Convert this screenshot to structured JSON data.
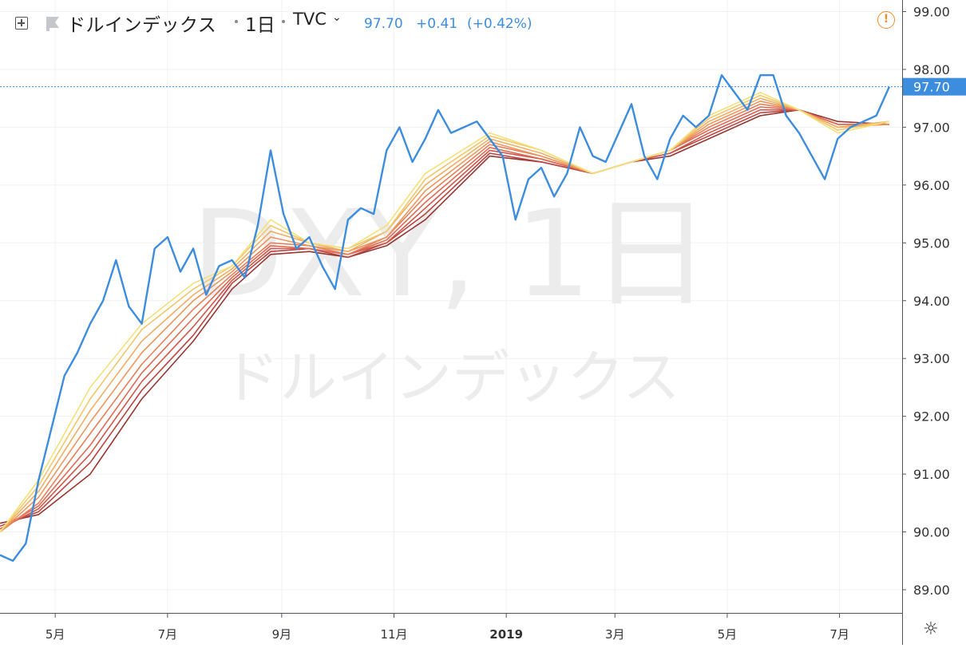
{
  "header": {
    "symbol_name": "ドルインデックス",
    "resolution": "1日",
    "exchange": "TVC",
    "last": "97.70",
    "change": "+0.41",
    "change_pct": "(+0.42%)",
    "flag_icon": "flag-icon",
    "warning_icon": "exclamation-circle-icon",
    "add_icon": "plus-square-icon"
  },
  "watermark": {
    "line1": "DXY, 1日",
    "line2": "ドルインデックス"
  },
  "settings_icon": "gear-icon",
  "colors": {
    "price_line": "#3d8ddf",
    "ribbon": [
      "#f3e07a",
      "#f2c66a",
      "#f0ae62",
      "#ec965c",
      "#e67f58",
      "#dd6a53",
      "#cf574a",
      "#b84540",
      "#983530"
    ],
    "last_price_bg": "#3d8ddf",
    "grid": "#eef1f5"
  },
  "chart_data": {
    "type": "line",
    "title": "DXY, 1日",
    "ylim": [
      88.6,
      99.2
    ],
    "y_ticks": [
      "99.00",
      "98.00",
      "97.00",
      "96.00",
      "95.00",
      "94.00",
      "93.00",
      "92.00",
      "91.00",
      "90.00",
      "89.00"
    ],
    "x_ticks": [
      "5月",
      "7月",
      "9月",
      "11月",
      "2019",
      "3月",
      "5月",
      "7月"
    ],
    "last_price_label": "97.70",
    "price_series": {
      "name": "DXY",
      "x": [
        "2018-04-01",
        "2018-04-08",
        "2018-04-15",
        "2018-04-22",
        "2018-04-29",
        "2018-05-06",
        "2018-05-13",
        "2018-05-20",
        "2018-05-27",
        "2018-06-03",
        "2018-06-10",
        "2018-06-17",
        "2018-06-24",
        "2018-07-01",
        "2018-07-08",
        "2018-07-15",
        "2018-07-22",
        "2018-07-29",
        "2018-08-05",
        "2018-08-12",
        "2018-08-19",
        "2018-08-26",
        "2018-09-02",
        "2018-09-09",
        "2018-09-16",
        "2018-09-23",
        "2018-09-30",
        "2018-10-07",
        "2018-10-14",
        "2018-10-21",
        "2018-10-28",
        "2018-11-04",
        "2018-11-11",
        "2018-11-18",
        "2018-11-25",
        "2018-12-02",
        "2018-12-09",
        "2018-12-16",
        "2018-12-23",
        "2018-12-30",
        "2019-01-06",
        "2019-01-13",
        "2019-01-20",
        "2019-01-27",
        "2019-02-03",
        "2019-02-10",
        "2019-02-17",
        "2019-02-24",
        "2019-03-03",
        "2019-03-10",
        "2019-03-17",
        "2019-03-24",
        "2019-03-31",
        "2019-04-07",
        "2019-04-14",
        "2019-04-21",
        "2019-04-28",
        "2019-05-05",
        "2019-05-12",
        "2019-05-19",
        "2019-05-26",
        "2019-06-02",
        "2019-06-09",
        "2019-06-16",
        "2019-06-23",
        "2019-06-30",
        "2019-07-07",
        "2019-07-14",
        "2019-07-21",
        "2019-07-28"
      ],
      "y": [
        89.6,
        89.5,
        89.8,
        90.9,
        91.8,
        92.7,
        93.1,
        93.6,
        94.0,
        94.7,
        93.9,
        93.6,
        94.9,
        95.1,
        94.5,
        94.9,
        94.1,
        94.6,
        94.7,
        94.4,
        95.3,
        96.6,
        95.5,
        94.9,
        95.1,
        94.6,
        94.2,
        95.4,
        95.6,
        95.5,
        96.6,
        97.0,
        96.4,
        96.8,
        97.3,
        96.9,
        97.0,
        97.1,
        96.8,
        96.5,
        95.4,
        96.1,
        96.3,
        95.8,
        96.2,
        97.0,
        96.5,
        96.4,
        96.9,
        97.4,
        96.5,
        96.1,
        96.8,
        97.2,
        97.0,
        97.2,
        97.9,
        97.6,
        97.3,
        97.9,
        97.9,
        97.2,
        96.9,
        96.5,
        96.1,
        96.8,
        97.0,
        97.1,
        97.2,
        97.7
      ]
    },
    "ribbon_series": [
      {
        "values": [
          90.0,
          90.9,
          92.5,
          93.6,
          94.3,
          94.6,
          95.4,
          95.0,
          94.9,
          95.3,
          96.2,
          96.9,
          96.6,
          96.2,
          96.4,
          96.6,
          97.2,
          97.6,
          97.3,
          96.9,
          97.1
        ]
      },
      {
        "values": [
          90.0,
          90.8,
          92.3,
          93.5,
          94.2,
          94.6,
          95.3,
          95.0,
          94.9,
          95.2,
          96.1,
          96.85,
          96.6,
          96.2,
          96.4,
          96.6,
          97.15,
          97.55,
          97.3,
          96.95,
          97.1
        ]
      },
      {
        "values": [
          90.0,
          90.7,
          92.1,
          93.3,
          94.1,
          94.55,
          95.2,
          95.0,
          94.85,
          95.2,
          96.0,
          96.8,
          96.55,
          96.2,
          96.4,
          96.6,
          97.1,
          97.5,
          97.3,
          97.0,
          97.1
        ]
      },
      {
        "values": [
          90.0,
          90.6,
          91.9,
          93.1,
          94.0,
          94.5,
          95.1,
          94.95,
          94.85,
          95.1,
          95.9,
          96.75,
          96.5,
          96.2,
          96.4,
          96.6,
          97.05,
          97.45,
          97.3,
          97.0,
          97.05
        ]
      },
      {
        "values": [
          90.0,
          90.5,
          91.7,
          92.9,
          93.85,
          94.45,
          95.0,
          94.95,
          94.8,
          95.1,
          95.8,
          96.7,
          96.5,
          96.2,
          96.4,
          96.6,
          97.0,
          97.4,
          97.3,
          97.0,
          97.05
        ]
      },
      {
        "values": [
          90.05,
          90.45,
          91.5,
          92.75,
          93.7,
          94.4,
          94.95,
          94.9,
          94.8,
          95.05,
          95.7,
          96.65,
          96.45,
          96.2,
          96.4,
          96.6,
          96.95,
          97.35,
          97.3,
          97.05,
          97.05
        ]
      },
      {
        "values": [
          90.05,
          90.4,
          91.35,
          92.6,
          93.55,
          94.35,
          94.9,
          94.9,
          94.8,
          95.0,
          95.6,
          96.6,
          96.45,
          96.2,
          96.4,
          96.55,
          96.9,
          97.3,
          97.3,
          97.05,
          97.05
        ]
      },
      {
        "values": [
          90.1,
          90.35,
          91.2,
          92.45,
          93.4,
          94.3,
          94.85,
          94.9,
          94.75,
          95.0,
          95.5,
          96.55,
          96.4,
          96.2,
          96.4,
          96.55,
          96.85,
          97.25,
          97.3,
          97.05,
          97.05
        ]
      },
      {
        "values": [
          90.15,
          90.3,
          91.0,
          92.3,
          93.3,
          94.2,
          94.8,
          94.85,
          94.75,
          94.95,
          95.4,
          96.5,
          96.4,
          96.2,
          96.4,
          96.5,
          96.8,
          97.2,
          97.3,
          97.1,
          97.05
        ]
      }
    ],
    "ribbon_x": [
      "2018-04-01",
      "2018-04-22",
      "2018-05-20",
      "2018-06-17",
      "2018-07-15",
      "2018-08-05",
      "2018-08-26",
      "2018-09-16",
      "2018-10-07",
      "2018-10-28",
      "2018-11-18",
      "2018-12-23",
      "2019-01-20",
      "2019-02-17",
      "2019-03-10",
      "2019-03-31",
      "2019-04-21",
      "2019-05-19",
      "2019-06-09",
      "2019-06-30",
      "2019-07-28"
    ],
    "grid": true
  }
}
